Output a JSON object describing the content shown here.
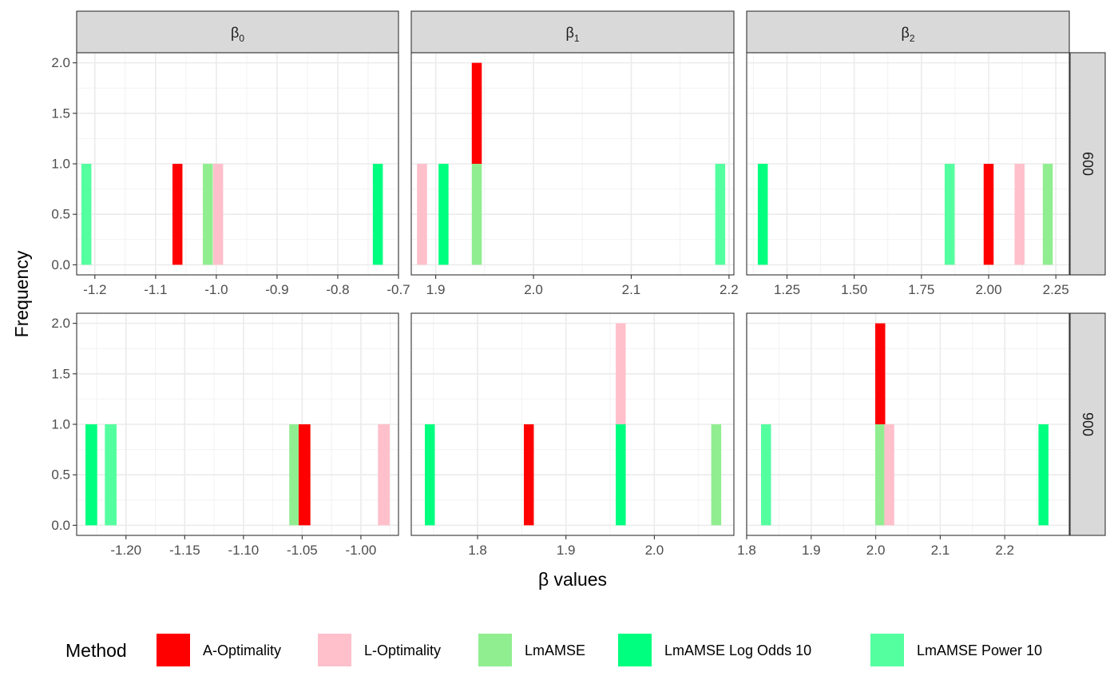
{
  "chart_data": {
    "type": "bar",
    "title": "",
    "xlabel": "β values",
    "ylabel": "Frequency",
    "grid": true,
    "legend": {
      "title": "Method",
      "position": "bottom",
      "entries": [
        "A-Optimality",
        "L-Optimality",
        "LmAMSE",
        "LmAMSE Log Odds 10",
        "LmAMSE Power 10"
      ]
    },
    "colors": {
      "A-Optimality": "#ff0000",
      "L-Optimality": "#ffc0cb",
      "LmAMSE": "#90ee90",
      "LmAMSE Log Odds 10": "#00ff7f",
      "LmAMSE Power 10": "#54ff9f"
    },
    "columns": [
      {
        "label": "β",
        "sub": "0"
      },
      {
        "label": "β",
        "sub": "1"
      },
      {
        "label": "β",
        "sub": "2"
      }
    ],
    "rows": [
      "600",
      "900"
    ],
    "ylim": [
      0,
      2
    ],
    "yticks": [
      0.0,
      0.5,
      1.0,
      1.5,
      2.0
    ],
    "ytick_labels": [
      "0.0",
      "0.5",
      "1.0",
      "1.5",
      "2.0"
    ],
    "bin_width": 0.01,
    "panels": [
      {
        "row": "600",
        "col": 0,
        "xlim": [
          -1.23,
          -0.7
        ],
        "xticks": [
          -1.2,
          -1.1,
          -1.0,
          -0.9,
          -0.8,
          -0.7
        ],
        "xtick_labels": [
          "-1.2",
          "-1.1",
          "-1.0",
          "-0.9",
          "-0.8",
          "-0.7"
        ],
        "bars": [
          {
            "method": "LmAMSE Power 10",
            "x": -1.214,
            "count": 1
          },
          {
            "method": "A-Optimality",
            "x": -1.064,
            "count": 1
          },
          {
            "method": "LmAMSE",
            "x": -1.014,
            "count": 1
          },
          {
            "method": "L-Optimality",
            "x": -0.997,
            "count": 1
          },
          {
            "method": "LmAMSE Log Odds 10",
            "x": -0.734,
            "count": 1
          }
        ]
      },
      {
        "row": "600",
        "col": 1,
        "xlim": [
          1.875,
          2.205
        ],
        "xticks": [
          1.9,
          2.0,
          2.1,
          2.2
        ],
        "xtick_labels": [
          "1.9",
          "2.0",
          "2.1",
          "2.2"
        ],
        "bars": [
          {
            "method": "L-Optimality",
            "x": 1.886,
            "count": 1
          },
          {
            "method": "LmAMSE Log Odds 10",
            "x": 1.908,
            "count": 1
          },
          {
            "method": "LmAMSE",
            "x": 1.942,
            "count": 1
          },
          {
            "method": "A-Optimality",
            "x": 1.942,
            "count": 1
          },
          {
            "method": "LmAMSE Power 10",
            "x": 2.191,
            "count": 1
          }
        ]
      },
      {
        "row": "600",
        "col": 2,
        "xlim": [
          1.1,
          2.3
        ],
        "xticks": [
          1.25,
          1.5,
          1.75,
          2.0,
          2.25
        ],
        "xtick_labels": [
          "1.25",
          "1.50",
          "1.75",
          "2.00",
          "2.25"
        ],
        "bars": [
          {
            "method": "LmAMSE Log Odds 10",
            "x": 1.16,
            "count": 1
          },
          {
            "method": "LmAMSE Power 10",
            "x": 1.855,
            "count": 1
          },
          {
            "method": "A-Optimality",
            "x": 2.0,
            "count": 1
          },
          {
            "method": "L-Optimality",
            "x": 2.115,
            "count": 1
          },
          {
            "method": "LmAMSE",
            "x": 2.22,
            "count": 1
          }
        ]
      },
      {
        "row": "900",
        "col": 0,
        "xlim": [
          -1.242,
          -0.968
        ],
        "xticks": [
          -1.2,
          -1.15,
          -1.1,
          -1.05,
          -1.0
        ],
        "xtick_labels": [
          "-1.20",
          "-1.15",
          "-1.10",
          "-1.05",
          "-1.00"
        ],
        "bars": [
          {
            "method": "LmAMSE Log Odds 10",
            "x": -1.2295,
            "count": 1
          },
          {
            "method": "LmAMSE Power 10",
            "x": -1.213,
            "count": 1
          },
          {
            "method": "LmAMSE",
            "x": -1.056,
            "count": 1
          },
          {
            "method": "A-Optimality",
            "x": -1.048,
            "count": 1
          },
          {
            "method": "L-Optimality",
            "x": -0.9805,
            "count": 1
          }
        ]
      },
      {
        "row": "900",
        "col": 1,
        "xlim": [
          1.725,
          2.09
        ],
        "xticks": [
          1.8,
          1.9,
          2.0
        ],
        "xtick_labels": [
          "1.8",
          "1.9",
          "2.0"
        ],
        "bars": [
          {
            "method": "LmAMSE Log Odds 10",
            "x": 1.746,
            "count": 1
          },
          {
            "method": "A-Optimality",
            "x": 1.858,
            "count": 1
          },
          {
            "method": "LmAMSE Log Odds 10",
            "x": 1.962,
            "count": 1
          },
          {
            "method": "L-Optimality",
            "x": 1.962,
            "count": 1
          },
          {
            "method": "LmAMSE",
            "x": 2.07,
            "count": 1
          }
        ]
      },
      {
        "row": "900",
        "col": 2,
        "xlim": [
          1.8,
          2.3
        ],
        "xticks": [
          1.8,
          1.9,
          2.0,
          2.1,
          2.2
        ],
        "xtick_labels": [
          "1.8",
          "1.9",
          "2.0",
          "2.1",
          "2.2"
        ],
        "bars": [
          {
            "method": "LmAMSE Power 10",
            "x": 1.83,
            "count": 1
          },
          {
            "method": "LmAMSE",
            "x": 2.007,
            "count": 1
          },
          {
            "method": "A-Optimality",
            "x": 2.007,
            "count": 1
          },
          {
            "method": "L-Optimality",
            "x": 2.021,
            "count": 1
          },
          {
            "method": "LmAMSE Log Odds 10",
            "x": 2.26,
            "count": 1
          }
        ]
      }
    ]
  }
}
